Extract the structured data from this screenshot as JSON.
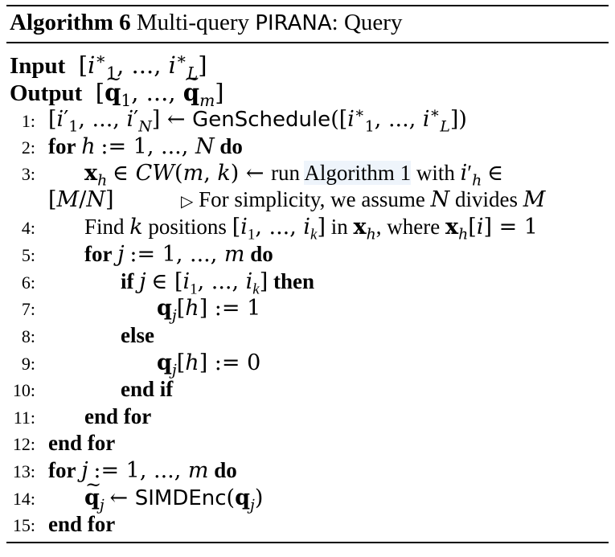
{
  "caption": {
    "label": "Algorithm 6",
    "title_prefix": "Multi-query",
    "title_name": "PIRANA",
    "title_suffix": ": Query"
  },
  "header": {
    "input_label": "Input",
    "input_value": "[i*1, ..., i*L]",
    "output_label": "Output",
    "output_value": "[q̃1, ..., q̃m]"
  },
  "lines": [
    {
      "num": "1:",
      "text": "[i′1, ..., i′N] ← GenSchedule([i*1, ..., i*L])"
    },
    {
      "num": "2:",
      "text": "for h := 1, ..., N do"
    },
    {
      "num": "3:",
      "text": "xh ∈ CW(m, k) ← run Algorithm 1 with i′h ∈ [M/N]",
      "comment": "For simplicity, we assume N divides M"
    },
    {
      "num": "4:",
      "text": "Find k positions [i1, ..., ik] in xh, where xh[i] = 1"
    },
    {
      "num": "5:",
      "text": "for j := 1, ..., m do"
    },
    {
      "num": "6:",
      "text": "if j ∈ [i1, ..., ik] then"
    },
    {
      "num": "7:",
      "text": "qj[h] := 1"
    },
    {
      "num": "8:",
      "text": "else"
    },
    {
      "num": "9:",
      "text": "qj[h] := 0"
    },
    {
      "num": "10:",
      "text": "end if"
    },
    {
      "num": "11:",
      "text": "end for"
    },
    {
      "num": "12:",
      "text": "end for"
    },
    {
      "num": "13:",
      "text": "for j := 1, ..., m do"
    },
    {
      "num": "14:",
      "text": "q̃j ← SIMDEnc(qj)"
    },
    {
      "num": "15:",
      "text": "end for"
    }
  ]
}
